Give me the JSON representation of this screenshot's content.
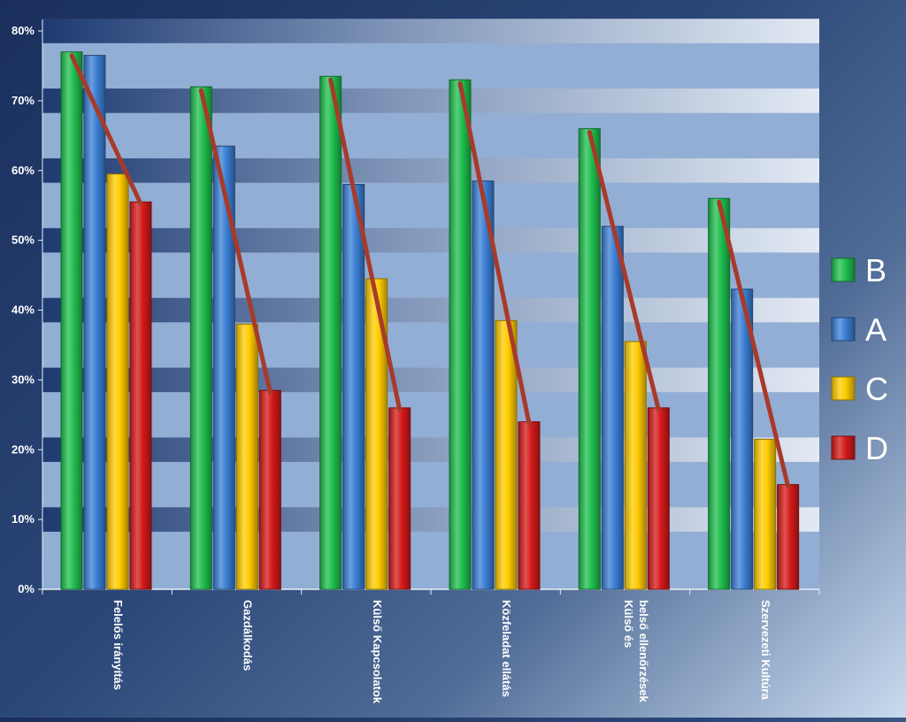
{
  "chart_data": {
    "type": "bar",
    "title": "",
    "xlabel": "",
    "ylabel": "",
    "ylim": [
      0,
      80
    ],
    "y_ticks": [
      "0%",
      "10%",
      "20%",
      "30%",
      "40%",
      "50%",
      "60%",
      "70%",
      "80%"
    ],
    "y_tick_values": [
      0,
      10,
      20,
      30,
      40,
      50,
      60,
      70,
      80
    ],
    "categories": [
      "Felelős irányítás",
      "Gazdálkodás",
      "Külső Kapcsolatok",
      "Közfeladat ellátás",
      "Külső és belső ellenőrzések",
      "Szervezeti Kultúra"
    ],
    "series": [
      {
        "name": "B",
        "color": "#1fbf4f",
        "values": [
          77,
          72,
          73.5,
          73,
          66,
          56
        ]
      },
      {
        "name": "A",
        "color": "#3b7fd4",
        "values": [
          76.5,
          63.5,
          58,
          58.5,
          52,
          43
        ]
      },
      {
        "name": "C",
        "color": "#ffcc00",
        "values": [
          59.5,
          38,
          44.5,
          38.5,
          35.5,
          21.5
        ]
      },
      {
        "name": "D",
        "color": "#d61a1a",
        "values": [
          55.5,
          28.5,
          26,
          24,
          26,
          15
        ]
      }
    ],
    "trend_lines": {
      "color": "#a83a2a",
      "from_series": "B",
      "to_series": "D"
    },
    "grid": true,
    "legend_position": "right"
  }
}
